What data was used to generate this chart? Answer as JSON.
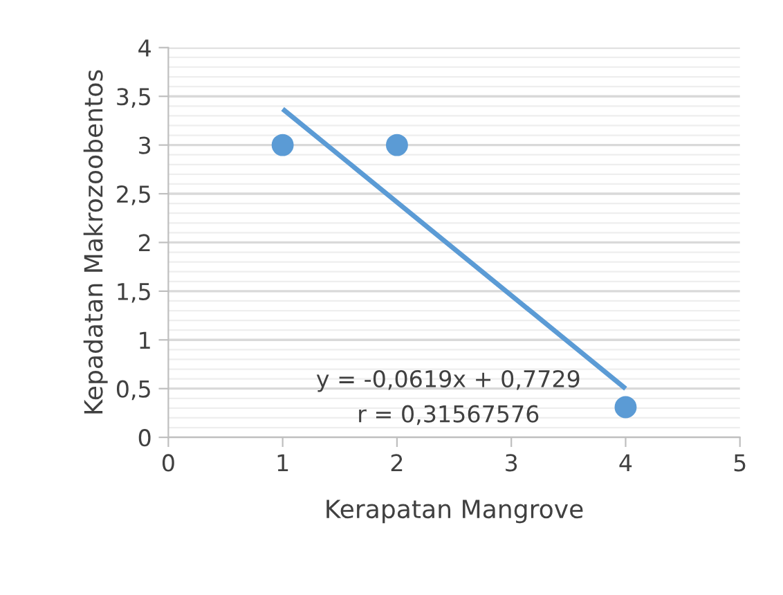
{
  "chart_data": {
    "type": "scatter",
    "xlabel": "Kerapatan Mangrove",
    "ylabel": "Kepadatan Makrozoobentos",
    "series": [
      {
        "color": "#5b9bd5",
        "x": [
          1,
          2,
          4
        ],
        "values": [
          3,
          3,
          0.31
        ],
        "marker": "circle"
      },
      {
        "type": "line",
        "color": "#5b9bd5",
        "x": [
          1,
          4
        ],
        "values": [
          3.37,
          0.5
        ],
        "marker": "none"
      }
    ],
    "xlim": [
      0,
      5
    ],
    "xticks": [
      0,
      1,
      2,
      3,
      4,
      5
    ],
    "ylim": [
      0,
      4
    ],
    "yticks": [
      0,
      {
        "value": 0.5,
        "label": "0,5"
      },
      1,
      {
        "value": 1.5,
        "label": "1,5"
      },
      2,
      {
        "value": 2.5,
        "label": "2,5"
      },
      3,
      {
        "value": 3.5,
        "label": "3,5"
      },
      4
    ],
    "grid": "y",
    "legend": false,
    "annotations": [
      "y = -0,0619x + 0,7729",
      "r = 0,31567576"
    ]
  }
}
